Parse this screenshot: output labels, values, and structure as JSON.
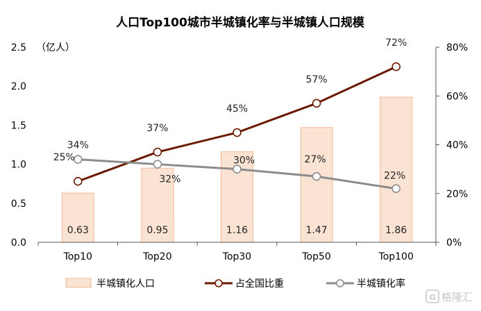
{
  "chart_data": {
    "type": "bar",
    "title": "人口Top100城市半城镇化率与半城镇人口规模",
    "left_unit_label": "（亿人）",
    "categories": [
      "Top10",
      "Top20",
      "Top30",
      "Top50",
      "Top100"
    ],
    "y_left": {
      "lim": [
        0,
        2.5
      ],
      "ticks": [
        "0.0",
        "0.5",
        "1.0",
        "1.5",
        "2.0",
        "2.5"
      ]
    },
    "y_right": {
      "lim": [
        0,
        80
      ],
      "ticks": [
        "0%",
        "20%",
        "40%",
        "60%",
        "80%"
      ]
    },
    "grid": false,
    "legend_position": "bottom",
    "series": [
      {
        "name": "半城镇化人口",
        "kind": "bar",
        "axis": "left",
        "values": [
          0.63,
          0.95,
          1.16,
          1.47,
          1.86
        ],
        "labels": [
          "0.63",
          "0.95",
          "1.16",
          "1.47",
          "1.86"
        ],
        "color": "#fbe3d3",
        "border": "#f2b894"
      },
      {
        "name": "占全国比重",
        "kind": "line",
        "axis": "right",
        "values": [
          25,
          37,
          45,
          57,
          72
        ],
        "labels": [
          "25%",
          "37%",
          "45%",
          "57%",
          "72%"
        ],
        "color": "#6b1a00"
      },
      {
        "name": "半城镇化率",
        "kind": "line",
        "axis": "right",
        "values": [
          34,
          32,
          30,
          27,
          22
        ],
        "labels": [
          "34%",
          "32%",
          "30%",
          "27%",
          "22%"
        ],
        "color": "#8c8c8c"
      }
    ]
  },
  "watermark": "格隆汇"
}
